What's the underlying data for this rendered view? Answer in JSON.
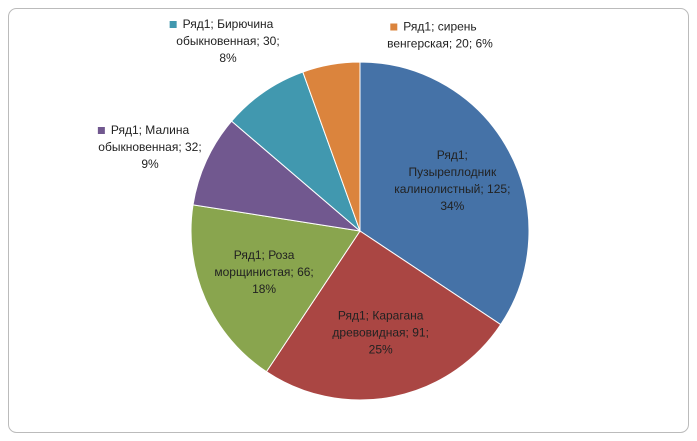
{
  "chart_data": {
    "type": "pie",
    "series": [
      {
        "name": "Ряд1",
        "values": [
          125,
          91,
          66,
          32,
          30,
          20
        ],
        "value_labels": [
          "Ряд1; Пузыреплодник калинолистный; 125; 34%",
          "Ряд1; Карагана древовидная; 91; 25%",
          "Ряд1; Роза морщинистая; 66; 18%",
          "Ряд1; Малина обыкновенная; 32; 9%",
          "Ряд1; Бирючина обыкновенная; 30; 8%",
          "Ряд1; сирень венгерская; 20; 6%"
        ],
        "colors": [
          "#4572a7",
          "#aa4643",
          "#89a54e",
          "#71588f",
          "#4198af",
          "#db843d"
        ]
      }
    ]
  }
}
